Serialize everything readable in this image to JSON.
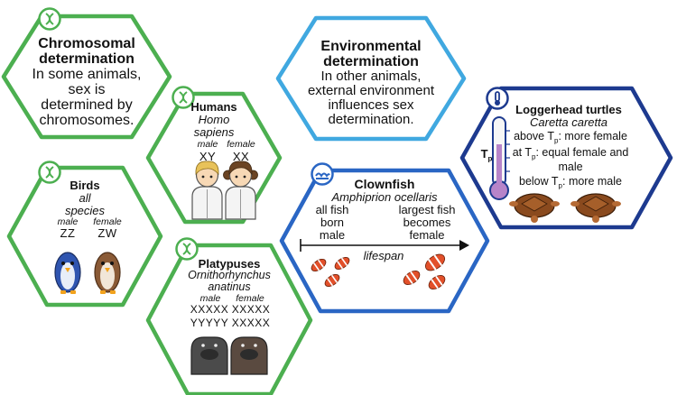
{
  "colors": {
    "green": "#4caf50",
    "light_blue": "#40a8e0",
    "mid_blue": "#2a66c4",
    "dark_blue": "#1d3a8f",
    "fish_orange": "#e2502a",
    "turtle_brown": "#8a4a1e"
  },
  "icons": {
    "chromosome": "dna-helix-icon",
    "wave": "water-wave-icon",
    "thermometer": "thermometer-icon"
  },
  "chromosomal": {
    "title": "Chromosomal determination",
    "title_l1": "Chromosomal",
    "title_l2": "determination",
    "desc_l1": "In some animals,",
    "desc_l2": "sex is",
    "desc_l3": "determined by",
    "desc_l4": "chromosomes."
  },
  "environmental": {
    "title_l1": "Environmental",
    "title_l2": "determination",
    "desc_l1": "In other animals,",
    "desc_l2": "external environment",
    "desc_l3": "influences sex",
    "desc_l4": "determination."
  },
  "humans": {
    "name": "Humans",
    "sci_l1": "Homo",
    "sci_l2": "sapiens",
    "male_label": "male",
    "female_label": "female",
    "male_chrom": "XY",
    "female_chrom": "XX"
  },
  "birds": {
    "name": "Birds",
    "sci_l1": "all",
    "sci_l2": "species",
    "male_label": "male",
    "female_label": "female",
    "male_chrom": "ZZ",
    "female_chrom": "ZW"
  },
  "platypuses": {
    "name": "Platypuses",
    "sci_l1": "Ornithorhynchus",
    "sci_l2": "anatinus",
    "male_label": "male",
    "female_label": "female",
    "male_row1": "XXXXX",
    "male_row2": "YYYYY",
    "female_row1": "XXXXX",
    "female_row2": "XXXXX"
  },
  "clownfish": {
    "name": "Clownfish",
    "sci": "Amphiprion ocellaris",
    "left_l1": "all fish",
    "left_l2": "born",
    "left_l3": "male",
    "right_l1": "largest fish",
    "right_l2": "becomes",
    "right_l3": "female",
    "axis_label": "lifespan"
  },
  "turtles": {
    "name": "Loggerhead turtles",
    "sci": "Caretta caretta",
    "thermo_label": "T",
    "thermo_sub": "p",
    "above_pre": "above T",
    "above_sub": "p",
    "above_post": ": more female",
    "at_pre": "at T",
    "at_sub": "p",
    "at_post": ": equal female and",
    "at_l2": "male",
    "below_pre": "below T",
    "below_sub": "p",
    "below_post": ": more male"
  }
}
